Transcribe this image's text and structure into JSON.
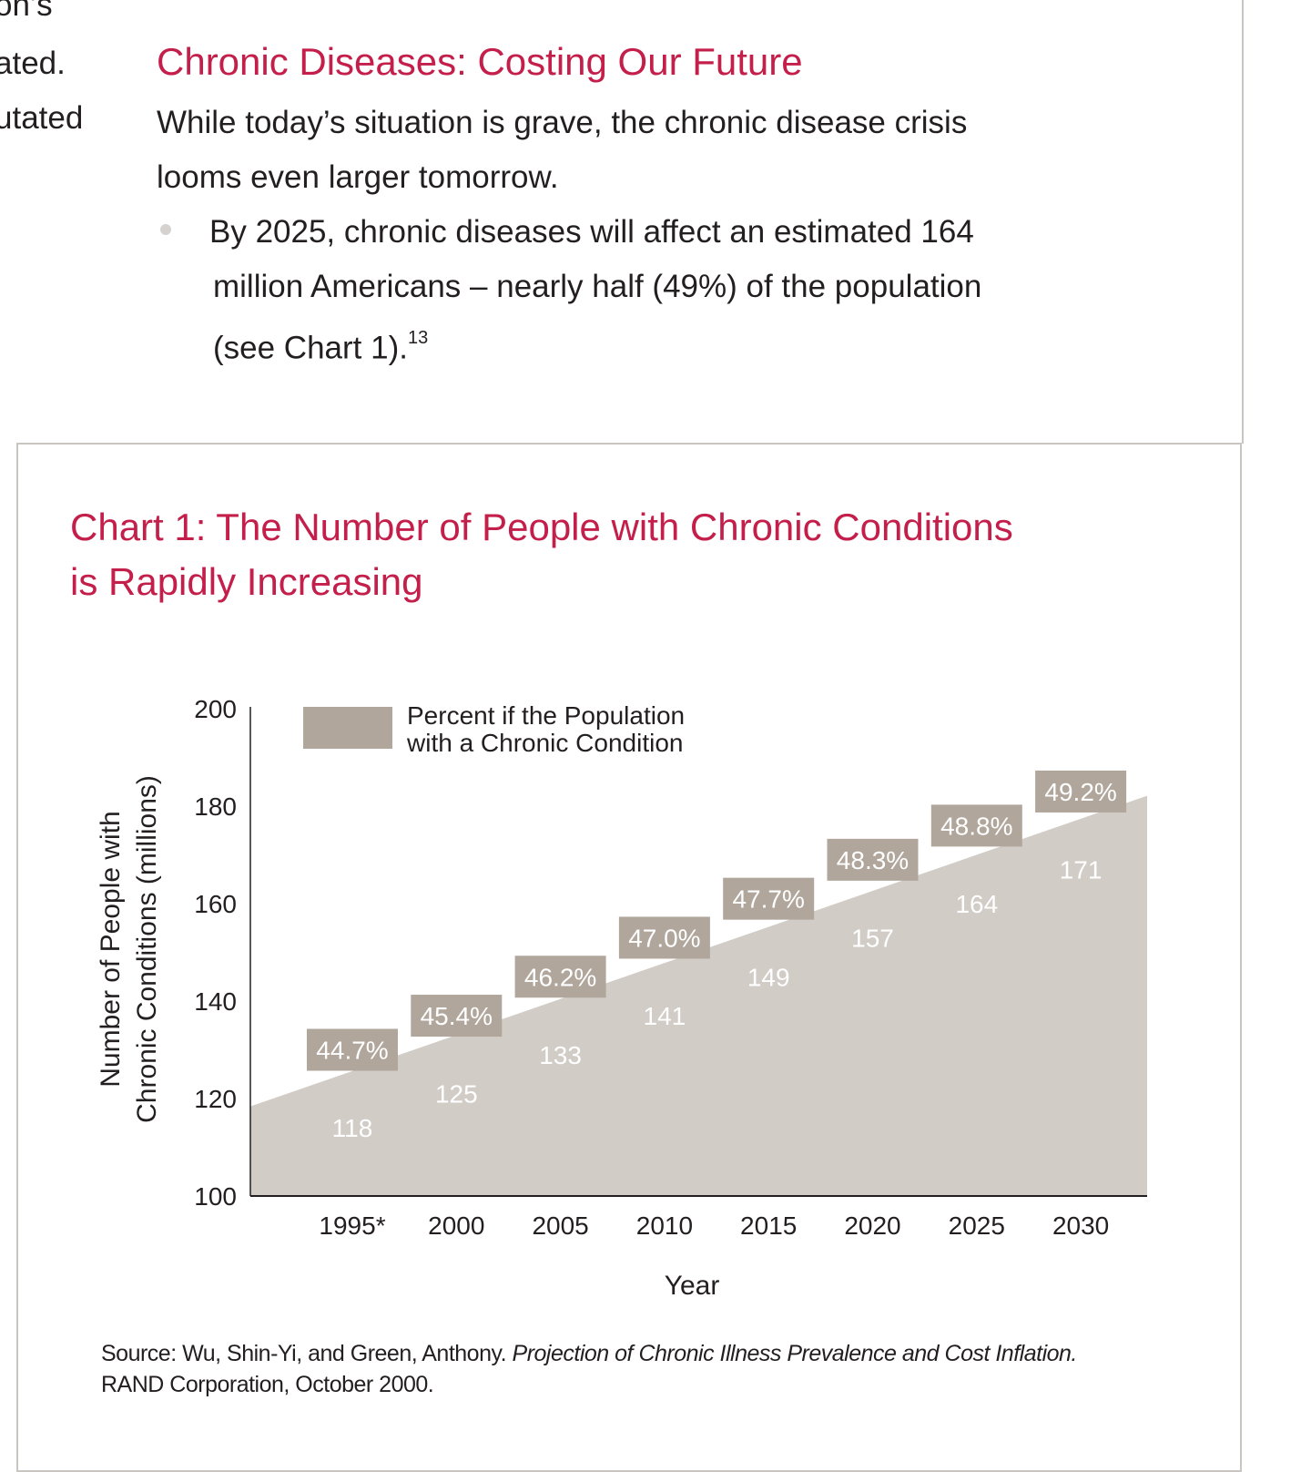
{
  "left_column_fragments": [
    "on’s",
    "ated.",
    "utated"
  ],
  "section": {
    "heading": "Chronic Diseases: Costing Our Future",
    "intro_line1": "While today’s situation is grave, the chronic disease crisis",
    "intro_line2": "looms even larger tomorrow.",
    "bullet_line1": "By 2025, chronic diseases will affect an estimated 164",
    "bullet_line2": "million Americans – nearly half (49%) of the population",
    "bullet_line3": "(see Chart 1).",
    "footnote": "13"
  },
  "colors": {
    "accent": "#c41e4a",
    "area": "#d1ccc6",
    "percent_box": "#b0a69c"
  },
  "chart_data": {
    "type": "area",
    "title_line1": "Chart 1: The Number of People with Chronic Conditions",
    "title_line2": "is Rapidly Increasing",
    "ylabel_line1": "Number of People with",
    "ylabel_line2": "Chronic Conditions (millions)",
    "xlabel": "Year",
    "ylim": [
      100,
      200
    ],
    "yticks": [
      "100",
      "120",
      "140",
      "160",
      "180",
      "200"
    ],
    "categories": [
      "1995*",
      "2000",
      "2005",
      "2010",
      "2015",
      "2020",
      "2025",
      "2030"
    ],
    "values": [
      118,
      125,
      133,
      141,
      149,
      157,
      164,
      171
    ],
    "percent_labels": [
      "44.7%",
      "45.4%",
      "46.2%",
      "47.0%",
      "47.7%",
      "48.3%",
      "48.8%",
      "49.2%"
    ],
    "legend": {
      "line1": "Percent if the Population",
      "line2": "with a Chronic Condition",
      "placement": "top-left"
    },
    "grid": false
  },
  "source": {
    "prefix": "Source: Wu, Shin-Yi, and Green, Anthony. ",
    "title_italic": "Projection of Chronic Illness Prevalence and Cost Inflation.",
    "line2": "RAND Corporation, October 2000."
  }
}
